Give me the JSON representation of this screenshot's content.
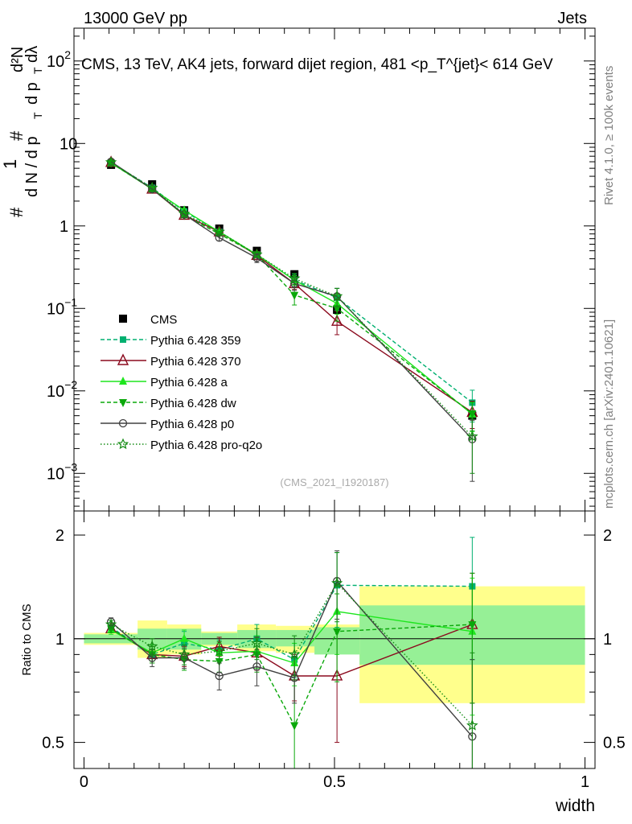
{
  "header": {
    "energy_label": "13000 GeV pp",
    "category_label": "Jets"
  },
  "side_text": {
    "rivet": "Rivet 4.1.0, ≥ 100k events",
    "mcplots": "mcplots.cern.ch [arXiv:2401.10621]"
  },
  "chart_data": [
    {
      "type": "line",
      "panel": "main",
      "title": "CMS, 13 TeV, AK4 jets, forward dijet region, 481 <p_T^{jet}< 614 GeV",
      "ylabel": "1/(dN/dpT) d²N/(dpT dλ)",
      "ylabel_parts": {
        "hash": "#",
        "one": "1",
        "dN": "d N / d p",
        "T": "T",
        "d2N": "d²N",
        "dpT": "d p",
        "dlambda": "dλ"
      },
      "yscale": "log",
      "ylim": [
        0.00035,
        250
      ],
      "xlim": [
        -0.02,
        1.02
      ],
      "yticks": [
        {
          "value": 0.001,
          "base": "10",
          "exp": "−3"
        },
        {
          "value": 0.01,
          "base": "10",
          "exp": "−2"
        },
        {
          "value": 0.1,
          "base": "10",
          "exp": "−1"
        },
        {
          "value": 1,
          "base": "1",
          "exp": ""
        },
        {
          "value": 10,
          "base": "10",
          "exp": ""
        },
        {
          "value": 100,
          "base": "10",
          "exp": "2"
        }
      ],
      "watermark": "(CMS_2021_I1920187)",
      "x": [
        0.054,
        0.136,
        0.2,
        0.27,
        0.345,
        0.42,
        0.505,
        0.775
      ],
      "data": {
        "name": "CMS",
        "bins": [
          [
            0.0,
            0.107
          ],
          [
            0.107,
            0.166
          ],
          [
            0.166,
            0.234
          ],
          [
            0.234,
            0.306
          ],
          [
            0.306,
            0.383
          ],
          [
            0.383,
            0.46
          ],
          [
            0.46,
            0.55
          ],
          [
            0.55,
            1.0
          ]
        ],
        "values": [
          5.5,
          3.2,
          1.55,
          0.93,
          0.5,
          0.26,
          0.096,
          0.005
        ]
      },
      "series": [
        {
          "name": "Pythia 6.428 359",
          "color": "#00b070",
          "dash": "5,3",
          "marker": "square",
          "values": [
            5.9,
            2.9,
            1.5,
            0.85,
            0.45,
            0.22,
            0.135,
            0.0072
          ],
          "err": [
            0,
            0,
            0,
            0,
            0,
            0.04,
            0.04,
            0.003
          ]
        },
        {
          "name": "Pythia 6.428 370",
          "color": "#8b0a1e",
          "dash": "",
          "marker": "triangle-open",
          "values": [
            5.9,
            2.8,
            1.35,
            0.85,
            0.44,
            0.2,
            0.07,
            0.0055
          ],
          "err": [
            0,
            0,
            0,
            0,
            0.05,
            0.03,
            0.022,
            0.002
          ]
        },
        {
          "name": "Pythia 6.428 a",
          "color": "#1ee61e",
          "dash": "",
          "marker": "triangle",
          "values": [
            5.8,
            2.8,
            1.55,
            0.85,
            0.45,
            0.22,
            0.115,
            0.0052
          ],
          "err": [
            0,
            0,
            0,
            0,
            0,
            0.03,
            0.03,
            0.002
          ]
        },
        {
          "name": "Pythia 6.428 dw",
          "color": "#0aa80a",
          "dash": "5,3",
          "marker": "triangle-down",
          "values": [
            5.8,
            2.8,
            1.35,
            0.8,
            0.45,
            0.145,
            0.1,
            0.0053
          ],
          "err": [
            0,
            0,
            0,
            0,
            0,
            0.035,
            0.03,
            0.002
          ]
        },
        {
          "name": "Pythia 6.428 p0",
          "color": "#404040",
          "dash": "",
          "marker": "circle-open",
          "values": [
            6.0,
            2.8,
            1.38,
            0.72,
            0.41,
            0.2,
            0.14,
            0.0026
          ],
          "err": [
            0,
            0,
            0,
            0.06,
            0.05,
            0.035,
            0.035,
            0.0018
          ]
        },
        {
          "name": "Pythia 6.428 pro-q2o",
          "color": "#148c14",
          "dash": "1.5,2.5",
          "marker": "star-open",
          "values": [
            5.9,
            2.9,
            1.4,
            0.85,
            0.45,
            0.23,
            0.14,
            0.0028
          ],
          "err": [
            0,
            0,
            0,
            0,
            0,
            0.035,
            0.035,
            0.0018
          ]
        }
      ]
    },
    {
      "type": "line",
      "panel": "ratio",
      "ylabel": "Ratio to CMS",
      "xlabel": "width",
      "yscale": "log",
      "ylim": [
        0.42,
        2.35
      ],
      "yticks": [
        0.5,
        1,
        2
      ],
      "ytick_labels": [
        "0.5",
        "1",
        "2"
      ],
      "xticks": [
        0,
        0.5,
        1
      ],
      "xtick_labels": [
        "0",
        "0.5",
        "1"
      ],
      "bands": {
        "inner": [
          [
            0.97,
            1.03
          ],
          [
            0.93,
            1.07
          ],
          [
            0.93,
            1.07
          ],
          [
            0.96,
            1.04
          ],
          [
            0.94,
            1.06
          ],
          [
            0.95,
            1.06
          ],
          [
            0.9,
            1.08
          ],
          [
            0.84,
            1.25
          ]
        ],
        "outer": [
          [
            0.96,
            1.04
          ],
          [
            0.88,
            1.13
          ],
          [
            0.9,
            1.1
          ],
          [
            0.95,
            1.05
          ],
          [
            0.92,
            1.1
          ],
          [
            0.91,
            1.09
          ],
          [
            0.92,
            1.1
          ],
          [
            0.65,
            1.42
          ]
        ]
      },
      "series": [
        {
          "name": "Pythia 6.428 359",
          "values": [
            1.08,
            0.9,
            0.97,
            0.93,
            1.0,
            0.87,
            1.43,
            1.42
          ],
          "err": [
            0.03,
            0.05,
            0.08,
            0.06,
            0.1,
            0.1,
            0.35,
            0.55
          ]
        },
        {
          "name": "Pythia 6.428 370",
          "values": [
            1.07,
            0.9,
            0.89,
            0.95,
            0.91,
            0.78,
            0.78,
            1.1
          ],
          "err": [
            0.03,
            0.05,
            0.06,
            0.06,
            0.1,
            0.12,
            0.28,
            0.45
          ]
        },
        {
          "name": "Pythia 6.428 a",
          "values": [
            1.06,
            0.91,
            1.0,
            0.91,
            0.92,
            0.85,
            1.2,
            1.05
          ],
          "err": [
            0.03,
            0.05,
            0.06,
            0.06,
            0.1,
            0.12,
            0.3,
            0.45
          ]
        },
        {
          "name": "Pythia 6.428 dw",
          "values": [
            1.07,
            0.9,
            0.87,
            0.86,
            0.9,
            0.56,
            1.05,
            1.1
          ],
          "err": [
            0.03,
            0.05,
            0.06,
            0.06,
            0.1,
            0.2,
            0.3,
            0.45
          ]
        },
        {
          "name": "Pythia 6.428 p0",
          "values": [
            1.12,
            0.88,
            0.88,
            0.78,
            0.83,
            0.77,
            1.47,
            0.52
          ],
          "err": [
            0.03,
            0.05,
            0.06,
            0.07,
            0.1,
            0.12,
            0.33,
            0.35
          ]
        },
        {
          "name": "Pythia 6.428 pro-q2o",
          "values": [
            1.1,
            0.95,
            0.9,
            0.92,
            0.97,
            0.9,
            1.45,
            0.56
          ],
          "err": [
            0.03,
            0.05,
            0.06,
            0.06,
            0.1,
            0.12,
            0.33,
            0.35
          ]
        }
      ]
    }
  ]
}
